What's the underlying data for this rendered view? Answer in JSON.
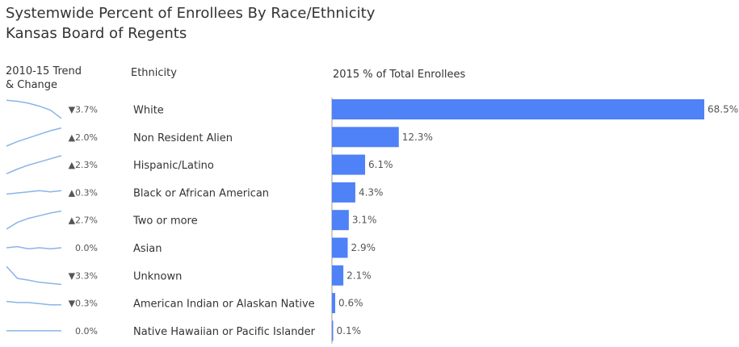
{
  "header": {
    "title": "Systemwide Percent of Enrollees By Race/Ethnicity",
    "subtitle": "Kansas Board of Regents"
  },
  "columns": {
    "trend": [
      "2010-15 Trend",
      "& Change"
    ],
    "ethnicity": "Ethnicity",
    "percent": "2015 % of Total Enrollees"
  },
  "colors": {
    "bar": "#4f81f7",
    "sparkline": "#8ab4e8",
    "axis": "#9a9a9a"
  },
  "chart_data": {
    "type": "bar",
    "orientation": "horizontal",
    "categories": [
      "White",
      "Non Resident Alien",
      "Hispanic/Latino",
      "Black or African American",
      "Two or more",
      "Asian",
      "Unknown",
      "American Indian or Alaskan Native",
      "Native Hawaiian or Pacific Islander"
    ],
    "values": [
      68.5,
      12.3,
      6.1,
      4.3,
      3.1,
      2.9,
      2.1,
      0.6,
      0.1
    ],
    "value_labels": [
      "68.5%",
      "12.3%",
      "6.1%",
      "4.3%",
      "3.1%",
      "2.9%",
      "2.1%",
      "0.6%",
      "0.1%"
    ],
    "change_labels": [
      "▼3.7%",
      "▲2.0%",
      "▲2.3%",
      "▲0.3%",
      "▲2.7%",
      "0.0%",
      "▼3.3%",
      "▼0.3%",
      "0.0%"
    ],
    "trends": [
      [
        72.2,
        72.0,
        71.6,
        71.0,
        70.2,
        68.5
      ],
      [
        10.3,
        10.8,
        11.2,
        11.6,
        12.0,
        12.3
      ],
      [
        3.8,
        4.4,
        4.9,
        5.3,
        5.7,
        6.1
      ],
      [
        4.0,
        4.1,
        4.2,
        4.3,
        4.2,
        4.3
      ],
      [
        0.4,
        1.4,
        2.0,
        2.4,
        2.8,
        3.1
      ],
      [
        2.9,
        3.0,
        2.8,
        2.9,
        2.8,
        2.9
      ],
      [
        5.4,
        3.2,
        2.9,
        2.5,
        2.3,
        2.1
      ],
      [
        0.9,
        0.8,
        0.8,
        0.7,
        0.6,
        0.6
      ],
      [
        0.1,
        0.1,
        0.1,
        0.1,
        0.1,
        0.1
      ]
    ],
    "xlim": [
      0,
      68.5
    ]
  }
}
